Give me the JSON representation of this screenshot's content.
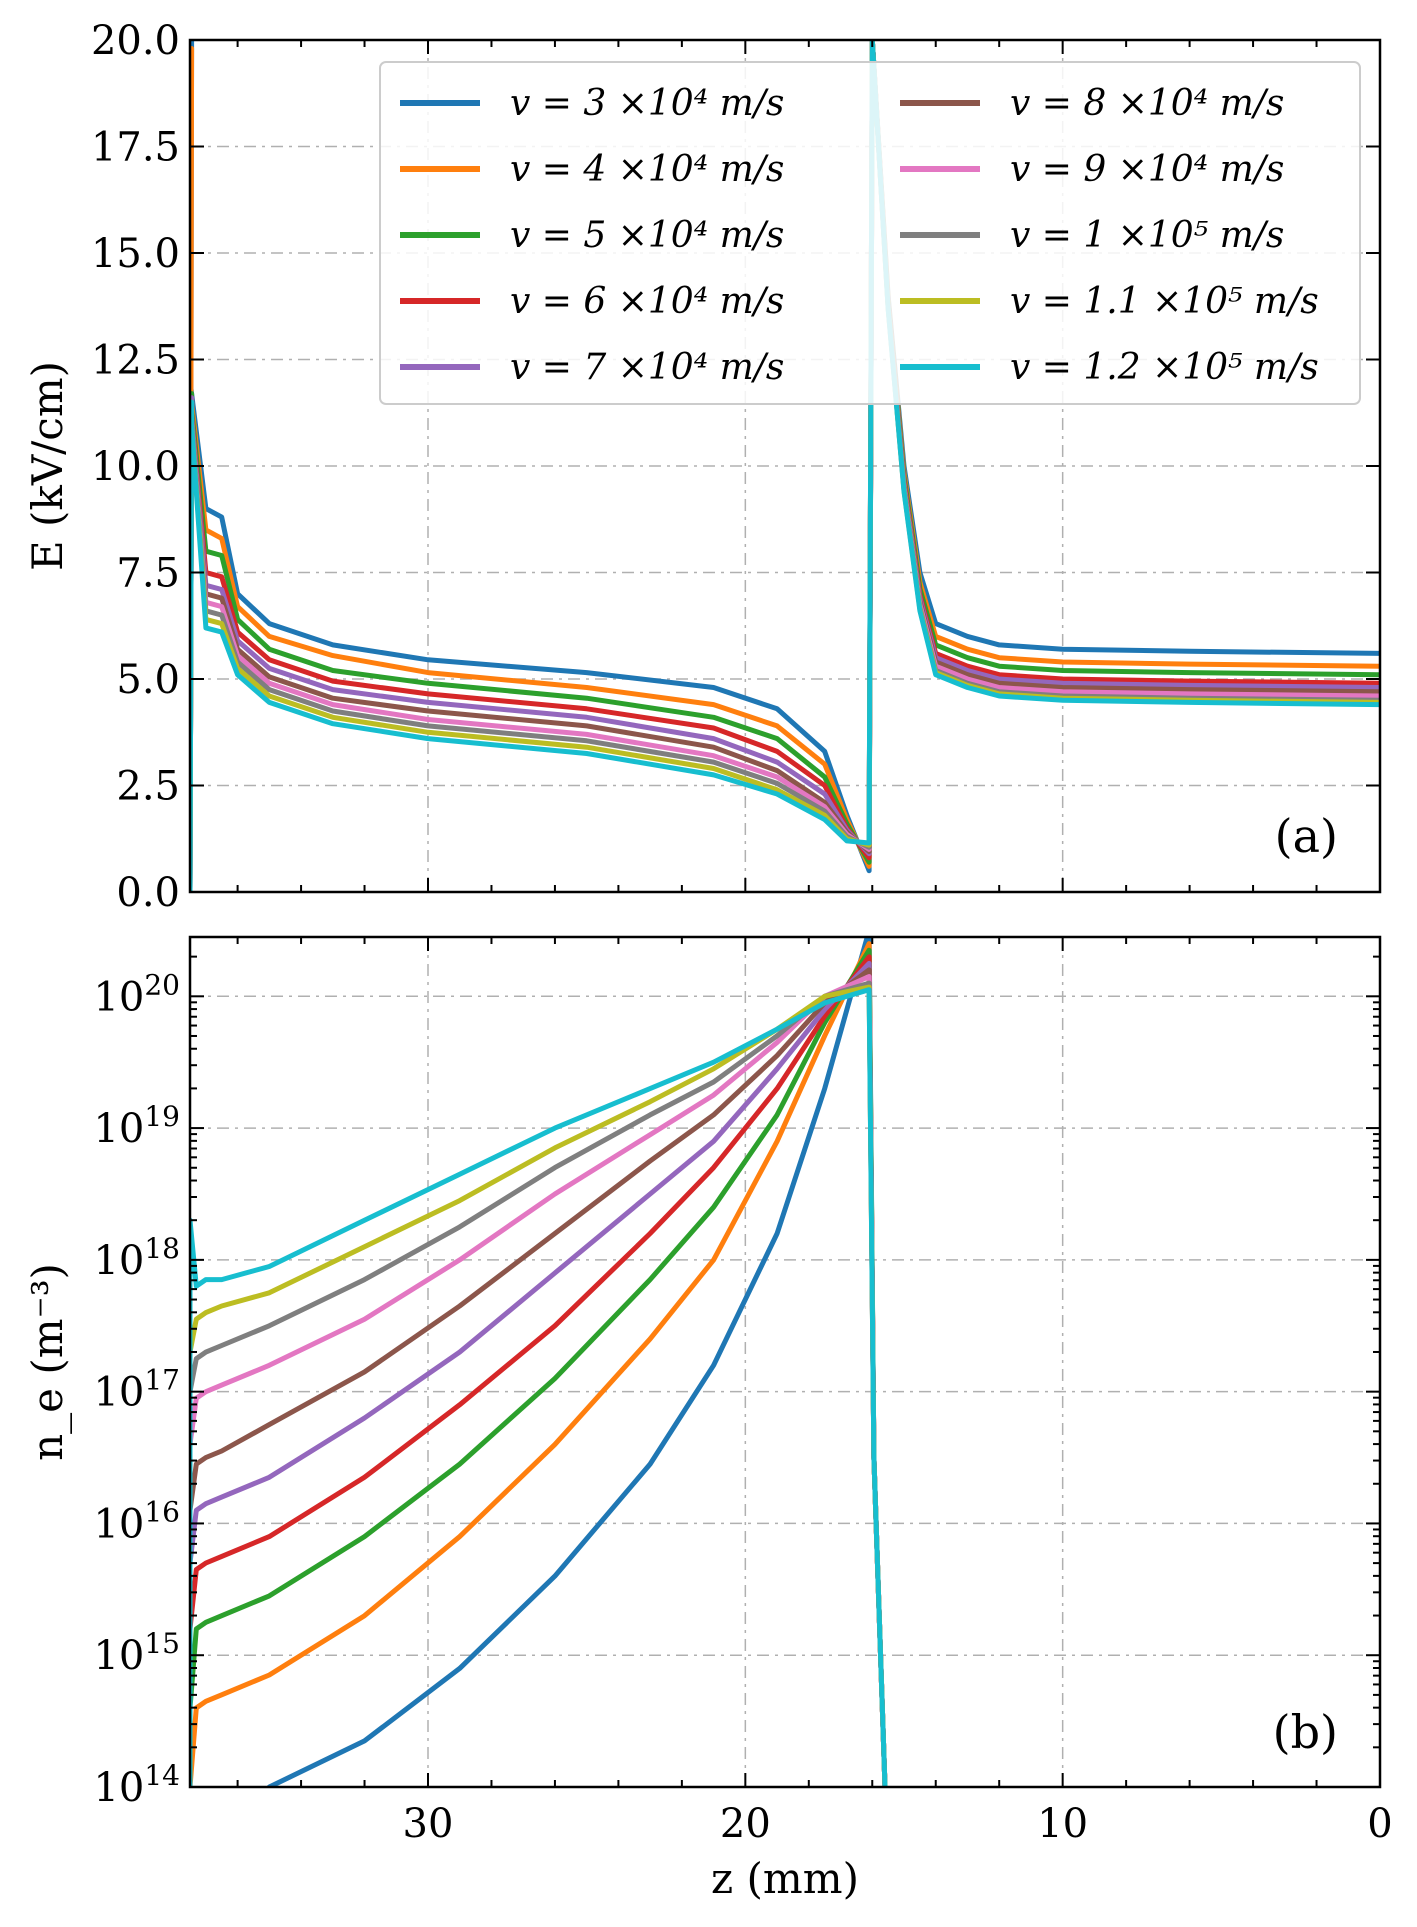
{
  "chart_data": [
    {
      "id": "a",
      "type": "line",
      "panel_label": "(a)",
      "xlabel": "",
      "ylabel": "E (kV/cm)",
      "ylim": [
        0,
        20
      ],
      "xlim": [
        37.5,
        0
      ],
      "yticks": [
        "0.0",
        "2.5",
        "5.0",
        "7.5",
        "10.0",
        "12.5",
        "15.0",
        "17.5",
        "20.0"
      ],
      "ytick_values": [
        0,
        2.5,
        5,
        7.5,
        10,
        12.5,
        15,
        17.5,
        20
      ],
      "grid": true,
      "legend": "top-right, two columns",
      "series": [
        {
          "name": "v = 3 ×10⁴ m/s",
          "color": "#1f77b4",
          "x": [
            37.5,
            37.0,
            36.5,
            36.0,
            35.0,
            33.0,
            30.0,
            25.0,
            21.0,
            19.0,
            17.5,
            16.8,
            16.1
          ],
          "y": [
            12.0,
            9.0,
            8.8,
            7.0,
            6.3,
            5.8,
            5.45,
            5.15,
            4.8,
            4.3,
            3.3,
            1.8,
            0.5
          ]
        },
        {
          "name": "v = 4 ×10⁴ m/s",
          "color": "#ff7f0e",
          "x": [
            37.5,
            37.0,
            36.5,
            36.0,
            35.0,
            33.0,
            30.0,
            25.0,
            21.0,
            19.0,
            17.5,
            16.8,
            16.1
          ],
          "y": [
            11.8,
            8.5,
            8.3,
            6.7,
            6.0,
            5.55,
            5.15,
            4.8,
            4.4,
            3.9,
            3.0,
            1.7,
            0.6
          ]
        },
        {
          "name": "v = 5 ×10⁴ m/s",
          "color": "#2ca02c",
          "x": [
            37.5,
            37.0,
            36.5,
            36.0,
            35.0,
            33.0,
            30.0,
            25.0,
            21.0,
            19.0,
            17.5,
            16.8,
            16.1
          ],
          "y": [
            11.7,
            8.0,
            7.9,
            6.4,
            5.7,
            5.2,
            4.9,
            4.55,
            4.1,
            3.6,
            2.7,
            1.6,
            0.7
          ]
        },
        {
          "name": "v = 6 ×10⁴ m/s",
          "color": "#d62728",
          "x": [
            37.5,
            37.0,
            36.5,
            36.0,
            35.0,
            33.0,
            30.0,
            25.0,
            21.0,
            19.0,
            17.5,
            16.8,
            16.1
          ],
          "y": [
            11.6,
            7.5,
            7.4,
            6.1,
            5.45,
            4.95,
            4.65,
            4.3,
            3.85,
            3.3,
            2.5,
            1.5,
            0.8
          ]
        },
        {
          "name": "v = 7 ×10⁴ m/s",
          "color": "#9467bd",
          "x": [
            37.5,
            37.0,
            36.5,
            36.0,
            35.0,
            33.0,
            30.0,
            25.0,
            21.0,
            19.0,
            17.5,
            16.8,
            16.1
          ],
          "y": [
            11.6,
            7.2,
            7.1,
            5.9,
            5.25,
            4.75,
            4.45,
            4.1,
            3.6,
            3.05,
            2.3,
            1.45,
            0.9
          ]
        },
        {
          "name": "v = 8 ×10⁴ m/s",
          "color": "#8c564b",
          "x": [
            37.5,
            37.0,
            36.5,
            36.0,
            35.0,
            33.0,
            30.0,
            25.0,
            21.0,
            19.0,
            17.5,
            16.8,
            16.1
          ],
          "y": [
            11.5,
            7.0,
            6.9,
            5.7,
            5.05,
            4.55,
            4.25,
            3.9,
            3.4,
            2.85,
            2.1,
            1.4,
            0.95
          ]
        },
        {
          "name": "v = 9 ×10⁴ m/s",
          "color": "#e377c2",
          "x": [
            37.5,
            37.0,
            36.5,
            36.0,
            35.0,
            33.0,
            30.0,
            25.0,
            21.0,
            19.0,
            17.5,
            16.8,
            16.1
          ],
          "y": [
            11.5,
            6.8,
            6.7,
            5.55,
            4.9,
            4.4,
            4.05,
            3.7,
            3.2,
            2.7,
            2.0,
            1.35,
            1.0
          ]
        },
        {
          "name": "v = 1 ×10⁵ m/s",
          "color": "#7f7f7f",
          "x": [
            37.5,
            37.0,
            36.5,
            36.0,
            35.0,
            33.0,
            30.0,
            25.0,
            21.0,
            19.0,
            17.5,
            16.8,
            16.1
          ],
          "y": [
            11.5,
            6.6,
            6.5,
            5.4,
            4.75,
            4.25,
            3.9,
            3.55,
            3.05,
            2.55,
            1.9,
            1.3,
            1.05
          ]
        },
        {
          "name": "v = 1.1 ×10⁵ m/s",
          "color": "#bcbd22",
          "x": [
            37.5,
            37.0,
            36.5,
            36.0,
            35.0,
            33.0,
            30.0,
            25.0,
            21.0,
            19.0,
            17.5,
            16.8,
            16.1
          ],
          "y": [
            11.5,
            6.4,
            6.3,
            5.25,
            4.6,
            4.1,
            3.75,
            3.4,
            2.9,
            2.4,
            1.8,
            1.25,
            1.1
          ]
        },
        {
          "name": "v = 1.2 ×10⁵ m/s",
          "color": "#17becf",
          "x": [
            37.5,
            37.0,
            36.5,
            36.0,
            35.0,
            33.0,
            30.0,
            25.0,
            21.0,
            19.0,
            17.5,
            16.8,
            16.1
          ],
          "y": [
            11.5,
            6.2,
            6.1,
            5.1,
            4.45,
            3.95,
            3.6,
            3.25,
            2.75,
            2.3,
            1.7,
            1.2,
            1.15
          ]
        }
      ],
      "right_branch": {
        "x": [
          16.0,
          15.5,
          15.0,
          14.5,
          14.0,
          13.0,
          12.0,
          10.0,
          6.0,
          0.0
        ],
        "y_start": [
          20,
          14.0,
          10.0,
          7.5,
          6.3,
          6.0,
          5.8,
          5.7,
          5.65,
          5.6
        ],
        "y_end_offsets_per_series": [
          0.0,
          0.3,
          0.5,
          0.7,
          0.8,
          0.9,
          1.0,
          1.1,
          1.15,
          1.2
        ]
      }
    },
    {
      "id": "b",
      "type": "line",
      "panel_label": "(b)",
      "xlabel": "z (mm)",
      "ylabel": "n_e (m⁻³)",
      "yscale": "log",
      "ylim_exp": [
        14,
        20.45
      ],
      "xlim": [
        37.5,
        0
      ],
      "xticks": [
        "30",
        "20",
        "10",
        "0"
      ],
      "xtick_values": [
        30,
        20,
        10,
        0
      ],
      "ytick_bases": [
        "10",
        "10",
        "10",
        "10",
        "10",
        "10",
        "10"
      ],
      "ytick_exps": [
        "14",
        "15",
        "16",
        "17",
        "18",
        "19",
        "20"
      ],
      "ytick_values_exp": [
        14,
        15,
        16,
        17,
        18,
        19,
        20
      ],
      "grid": true,
      "series": [
        {
          "name": "v = 3 ×10⁴ m/s",
          "color": "#1f77b4",
          "x": [
            35.0,
            32.0,
            29.0,
            26.0,
            23.0,
            21.0,
            19.0,
            17.5,
            16.1
          ],
          "log_y": [
            14.0,
            14.35,
            14.9,
            15.6,
            16.45,
            17.2,
            18.2,
            19.3,
            20.5
          ]
        },
        {
          "name": "v = 4 ×10⁴ m/s",
          "color": "#ff7f0e",
          "x": [
            37.5,
            37.3,
            37.0,
            36.5,
            35.0,
            32.0,
            29.0,
            26.0,
            23.0,
            21.0,
            19.0,
            17.5,
            16.1
          ],
          "log_y": [
            14.0,
            14.6,
            14.65,
            14.7,
            14.85,
            15.3,
            15.9,
            16.6,
            17.4,
            18.0,
            18.9,
            19.7,
            20.4
          ]
        },
        {
          "name": "v = 5 ×10⁴ m/s",
          "color": "#2ca02c",
          "x": [
            37.5,
            37.3,
            37.0,
            36.5,
            35.0,
            32.0,
            29.0,
            26.0,
            23.0,
            21.0,
            19.0,
            17.5,
            16.1
          ],
          "log_y": [
            14.6,
            15.2,
            15.25,
            15.3,
            15.45,
            15.9,
            16.45,
            17.1,
            17.85,
            18.4,
            19.1,
            19.8,
            20.35
          ]
        },
        {
          "name": "v = 6 ×10⁴ m/s",
          "color": "#d62728",
          "x": [
            37.5,
            37.3,
            37.0,
            36.5,
            35.0,
            32.0,
            29.0,
            26.0,
            23.0,
            21.0,
            19.0,
            17.5,
            16.1
          ],
          "log_y": [
            15.2,
            15.65,
            15.7,
            15.75,
            15.9,
            16.35,
            16.9,
            17.5,
            18.2,
            18.7,
            19.3,
            19.85,
            20.3
          ]
        },
        {
          "name": "v = 7 ×10⁴ m/s",
          "color": "#9467bd",
          "x": [
            37.5,
            37.3,
            37.0,
            36.5,
            35.0,
            32.0,
            29.0,
            26.0,
            23.0,
            21.0,
            19.0,
            17.5,
            16.1
          ],
          "log_y": [
            15.7,
            16.1,
            16.15,
            16.2,
            16.35,
            16.8,
            17.3,
            17.9,
            18.5,
            18.9,
            19.45,
            19.9,
            20.25
          ]
        },
        {
          "name": "v = 8 ×10⁴ m/s",
          "color": "#8c564b",
          "x": [
            37.5,
            37.3,
            37.0,
            36.5,
            35.0,
            32.0,
            29.0,
            26.0,
            23.0,
            21.0,
            19.0,
            17.5,
            16.1
          ],
          "log_y": [
            16.1,
            16.45,
            16.5,
            16.55,
            16.75,
            17.15,
            17.65,
            18.2,
            18.75,
            19.1,
            19.55,
            19.95,
            20.2
          ]
        },
        {
          "name": "v = 9 ×10⁴ m/s",
          "color": "#e377c2",
          "x": [
            37.5,
            37.3,
            37.0,
            36.5,
            35.0,
            32.0,
            29.0,
            26.0,
            23.0,
            21.0,
            19.0,
            17.5,
            16.1
          ],
          "log_y": [
            16.6,
            16.95,
            17.0,
            17.05,
            17.2,
            17.55,
            18.0,
            18.5,
            18.95,
            19.25,
            19.65,
            20.0,
            20.15
          ]
        },
        {
          "name": "v = 1 ×10⁵ m/s",
          "color": "#7f7f7f",
          "x": [
            37.5,
            37.3,
            37.0,
            36.5,
            35.0,
            32.0,
            29.0,
            26.0,
            23.0,
            21.0,
            19.0,
            17.5,
            16.1
          ],
          "log_y": [
            17.0,
            17.25,
            17.3,
            17.35,
            17.5,
            17.85,
            18.25,
            18.7,
            19.1,
            19.35,
            19.7,
            20.0,
            20.1
          ]
        },
        {
          "name": "v = 1.1 ×10⁵ m/s",
          "color": "#bcbd22",
          "x": [
            37.5,
            37.3,
            37.0,
            36.5,
            35.0,
            32.0,
            29.0,
            26.0,
            23.0,
            21.0,
            19.0,
            17.5,
            16.1
          ],
          "log_y": [
            17.3,
            17.55,
            17.6,
            17.65,
            17.75,
            18.1,
            18.45,
            18.85,
            19.2,
            19.45,
            19.75,
            20.0,
            20.07
          ]
        },
        {
          "name": "v = 1.2 ×10⁵ m/s",
          "color": "#17becf",
          "x": [
            37.5,
            37.3,
            37.0,
            36.5,
            35.0,
            32.0,
            29.0,
            26.0,
            23.0,
            21.0,
            19.0,
            17.5,
            16.1
          ],
          "log_y": [
            18.3,
            17.8,
            17.85,
            17.85,
            17.95,
            18.3,
            18.65,
            19.0,
            19.3,
            19.5,
            19.75,
            19.95,
            20.05
          ]
        }
      ]
    }
  ]
}
